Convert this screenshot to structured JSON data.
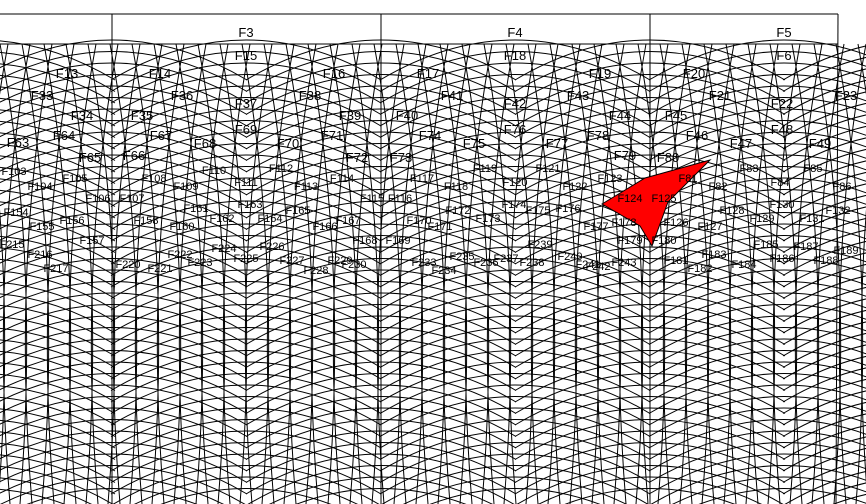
{
  "diagram": {
    "type": "grid-of-cells",
    "highlight_color": "#ff0000",
    "line_color": "#000000",
    "highlighted_cells": [
      "F81",
      "F124",
      "F125",
      "F126"
    ],
    "top_labels": [
      "F3",
      "F4",
      "F5"
    ],
    "row2_labels": [
      "F15",
      "F18",
      "F6"
    ],
    "row3_labels": [
      "F13",
      "F14",
      "F16",
      "F17",
      "F19",
      "F20"
    ],
    "row4_labels": [
      "F33",
      "F36",
      "F37",
      "F38",
      "F41",
      "F42",
      "F43",
      "F21",
      "F22",
      "F23"
    ],
    "row5_labels": [
      "F34",
      "F35",
      "F39",
      "F40",
      "F44",
      "F45",
      "F48"
    ],
    "row6_labels": [
      "F63",
      "F64",
      "F67",
      "F68",
      "F69",
      "F70",
      "F71",
      "F74",
      "F75",
      "F76",
      "F77",
      "F78",
      "F46",
      "F47",
      "F49"
    ],
    "row7_labels": [
      "F65",
      "F66",
      "F72",
      "F73",
      "F79",
      "F80"
    ],
    "row8_labels": [
      "F103",
      "F104",
      "F105",
      "F108",
      "F109",
      "F110",
      "F111",
      "F112",
      "F113",
      "F114",
      "F117",
      "F118",
      "F119",
      "F120",
      "F121",
      "F122",
      "F123",
      "F81",
      "F82",
      "F83",
      "F84",
      "F85",
      "F86"
    ],
    "row9_labels": [
      "F154",
      "F155",
      "F156",
      "F106",
      "F107",
      "F158",
      "F160",
      "F161",
      "F162",
      "F163",
      "F164",
      "F165",
      "F166",
      "F167",
      "F115",
      "F116",
      "F170",
      "F171",
      "F172",
      "F173",
      "F174",
      "F175",
      "F176",
      "F177",
      "F178",
      "F124",
      "F125",
      "F126",
      "F127",
      "F128",
      "F129",
      "F130",
      "F131",
      "F132"
    ],
    "row10_labels": [
      "F215",
      "F216",
      "F217",
      "F157",
      "F220",
      "F221",
      "F222",
      "F223",
      "F224",
      "F225",
      "F226",
      "F227",
      "F228",
      "F229",
      "F230",
      "F168",
      "F169",
      "F233",
      "F234",
      "F235",
      "F236",
      "F237",
      "F238",
      "F239",
      "F240",
      "F241",
      "F242",
      "F243",
      "F179",
      "F180",
      "F181",
      "F182",
      "F183",
      "F184",
      "F185",
      "F186",
      "F187",
      "F188",
      "F189"
    ]
  }
}
